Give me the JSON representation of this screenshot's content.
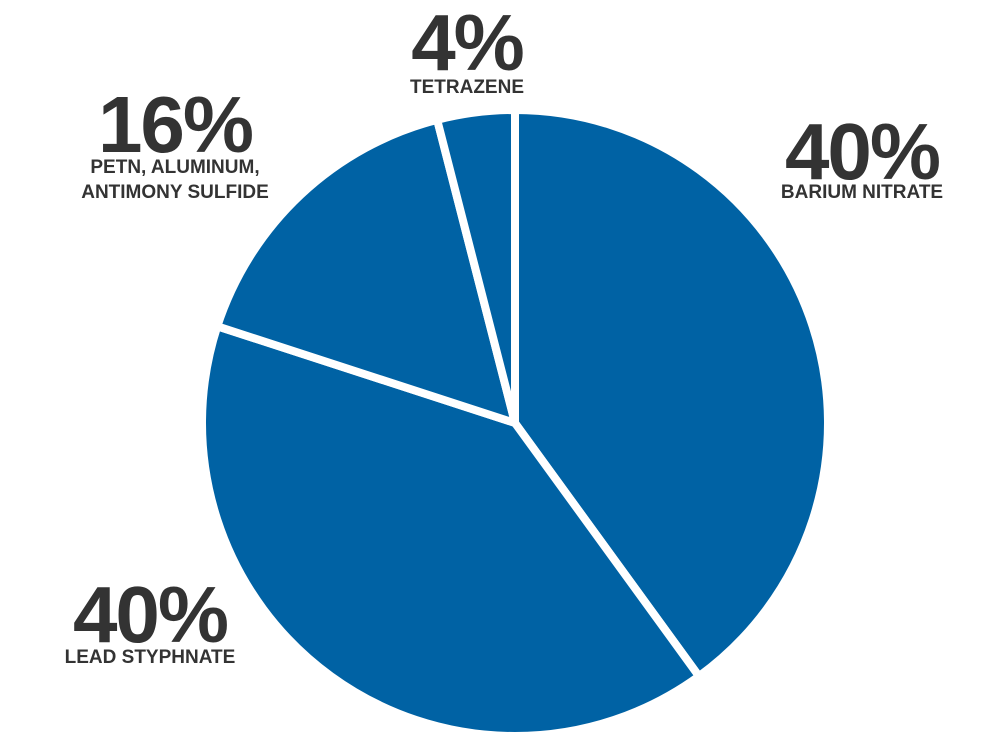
{
  "chart_data": {
    "type": "pie",
    "categories": [
      "BARIUM NITRATE",
      "LEAD STYPHNATE",
      "PETN, ALUMINUM, ANTIMONY SULFIDE",
      "TETRAZENE"
    ],
    "values": [
      40,
      40,
      16,
      4
    ],
    "value_labels": [
      "40%",
      "40%",
      "16%",
      "4%"
    ],
    "color": "#0062a4"
  }
}
